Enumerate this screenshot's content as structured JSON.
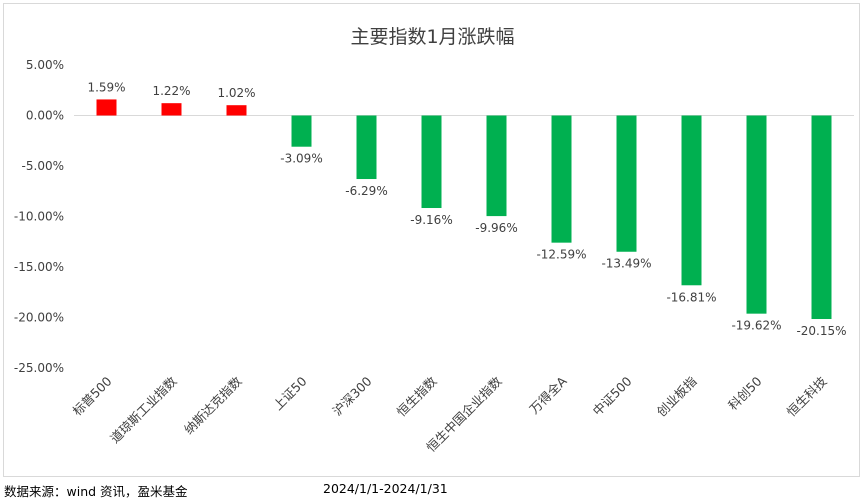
{
  "chart_data": {
    "type": "bar",
    "title": "主要指数1月涨跌幅",
    "categories": [
      "标普500",
      "道琼斯工业指数",
      "纳斯达克指数",
      "上证50",
      "沪深300",
      "恒生指数",
      "恒生中国企业指数",
      "万得全A",
      "中证500",
      "创业板指",
      "科创50",
      "恒生科技"
    ],
    "values": [
      1.59,
      1.22,
      1.02,
      -3.09,
      -6.29,
      -9.16,
      -9.96,
      -12.59,
      -13.49,
      -16.81,
      -19.62,
      -20.15
    ],
    "data_labels": [
      "1.59%",
      "1.22%",
      "1.02%",
      "-3.09%",
      "-6.29%",
      "-9.16%",
      "-9.96%",
      "-12.59%",
      "-13.49%",
      "-16.81%",
      "-19.62%",
      "-20.15%"
    ],
    "y_ticks": [
      5,
      0,
      -5,
      -10,
      -15,
      -20,
      -25
    ],
    "y_tick_labels": [
      "5.00%",
      "0.00%",
      "-5.00%",
      "-10.00%",
      "-15.00%",
      "-20.00%",
      "-25.00%"
    ],
    "ylim": [
      -25,
      5
    ],
    "xlabel": "",
    "ylabel": "",
    "grid": false,
    "legend": "none",
    "colors": {
      "positive": "#ff0000",
      "negative": "#00b050"
    }
  },
  "footer": {
    "source": "数据来源：wind 资讯，盈米基金",
    "date_range": "2024/1/1-2024/1/31"
  }
}
